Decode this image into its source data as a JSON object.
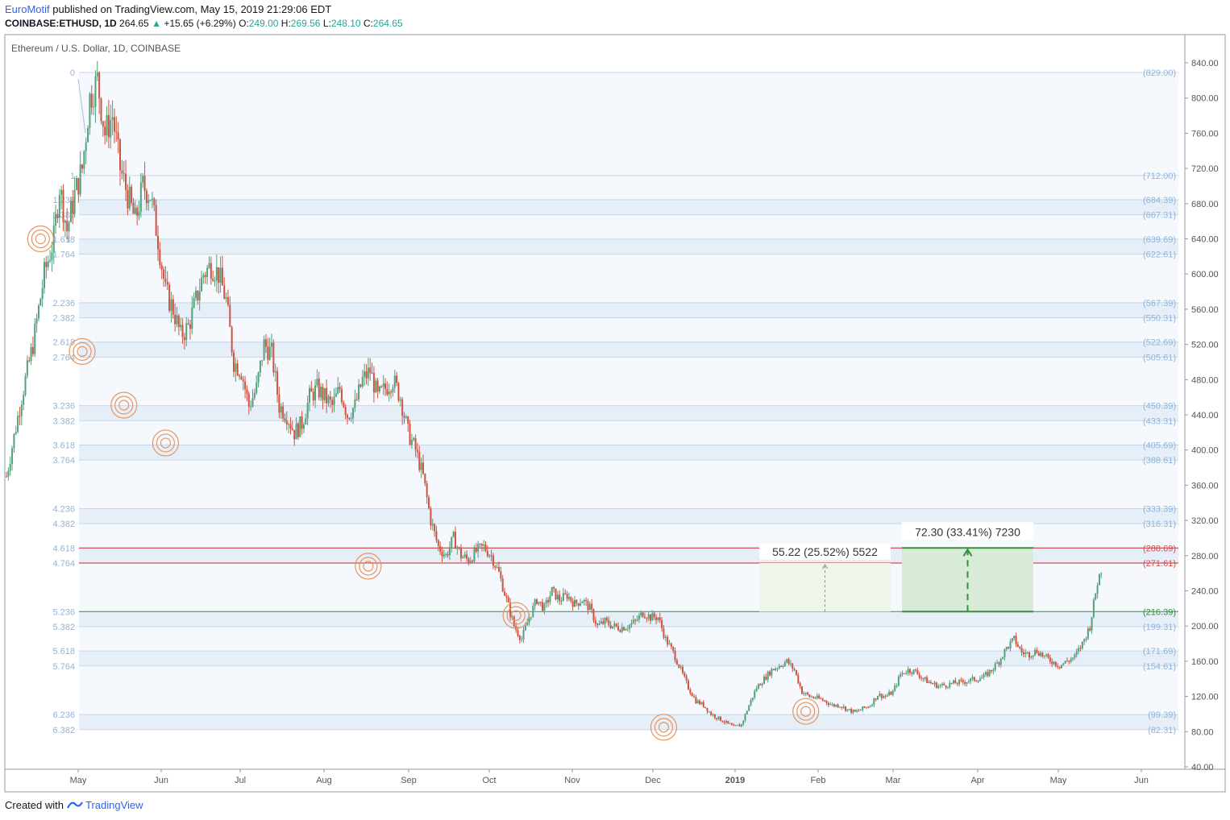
{
  "header": {
    "brand": "EuroMotif",
    "published": "published on TradingView.com, May 15, 2019 21:29:06 EDT",
    "symbol": "COINBASE:ETHUSD, 1D",
    "last": "264.65",
    "change_arrow": "▲",
    "change": "+15.65 (+6.29%)",
    "o_label": "O:",
    "o": "249.00",
    "h_label": "H:",
    "h": "269.56",
    "l_label": "L:",
    "l": "248.10",
    "c_label": "C:",
    "c": "264.65"
  },
  "footer": {
    "created_with": "Created with",
    "brand": "TradingView",
    "logo_icon": "tradingview-logo-icon"
  },
  "colors": {
    "up": "#53a07c",
    "down": "#d0533f",
    "fib_text": "#8fb4d9",
    "fib_band": "#e6eef8",
    "red_line": "#c62828",
    "green_line": "#388e3c",
    "target_circle": "#e8955e"
  },
  "chart_data": {
    "type": "candlestick",
    "title": "Ethereum / U.S. Dollar, 1D, COINBASE",
    "ylim": [
      40,
      850
    ],
    "y_ticks": [
      "840.00",
      "800.00",
      "760.00",
      "720.00",
      "680.00",
      "640.00",
      "600.00",
      "560.00",
      "520.00",
      "480.00",
      "440.00",
      "400.00",
      "360.00",
      "320.00",
      "280.00",
      "240.00",
      "200.00",
      "160.00",
      "120.00",
      "80.00",
      "40.00"
    ],
    "x_ticks": [
      "May",
      "Jun",
      "Jul",
      "Aug",
      "Sep",
      "Oct",
      "Nov",
      "Dec",
      "2019",
      "Feb",
      "Mar",
      "Apr",
      "May",
      "Jun"
    ],
    "fib_levels": [
      {
        "ratio": "0",
        "price": "(829.00)",
        "v": 829
      },
      {
        "ratio": "1",
        "price": "(712.00)",
        "v": 712
      },
      {
        "ratio": "1.236",
        "price": "(684.39)",
        "v": 684.39
      },
      {
        "ratio": "1.382",
        "price": "(667.31)",
        "v": 667.31
      },
      {
        "ratio": "1.618",
        "price": "(639.69)",
        "v": 639.69
      },
      {
        "ratio": "1.764",
        "price": "(622.61)",
        "v": 622.61
      },
      {
        "ratio": "2.236",
        "price": "(567.39)",
        "v": 567.39
      },
      {
        "ratio": "2.382",
        "price": "(550.31)",
        "v": 550.31
      },
      {
        "ratio": "2.618",
        "price": "(522.69)",
        "v": 522.69
      },
      {
        "ratio": "2.764",
        "price": "(505.61)",
        "v": 505.61
      },
      {
        "ratio": "3.236",
        "price": "(450.39)",
        "v": 450.39
      },
      {
        "ratio": "3.382",
        "price": "(433.31)",
        "v": 433.31
      },
      {
        "ratio": "3.618",
        "price": "(405.69)",
        "v": 405.69
      },
      {
        "ratio": "3.764",
        "price": "(388.61)",
        "v": 388.61
      },
      {
        "ratio": "4.236",
        "price": "(333.39)",
        "v": 333.39
      },
      {
        "ratio": "4.382",
        "price": "(316.31)",
        "v": 316.31
      },
      {
        "ratio": "4.618",
        "price": "(288.69)",
        "v": 288.69,
        "color": "red"
      },
      {
        "ratio": "4.764",
        "price": "(271.61)",
        "v": 271.61,
        "color": "red"
      },
      {
        "ratio": "5.236",
        "price": "(216.39)",
        "v": 216.39,
        "color": "green"
      },
      {
        "ratio": "5.382",
        "price": "(199.31)",
        "v": 199.31
      },
      {
        "ratio": "5.618",
        "price": "(171.69)",
        "v": 171.69
      },
      {
        "ratio": "5.764",
        "price": "(154.61)",
        "v": 154.61
      },
      {
        "ratio": "6.236",
        "price": "(99.39)",
        "v": 99.39
      },
      {
        "ratio": "6.382",
        "price": "(82.31)",
        "v": 82.31
      }
    ],
    "measurements": [
      {
        "label": "55.22 (25.52%) 5522",
        "from": 216.39,
        "to": 271.61
      },
      {
        "label": "72.30 (33.41%) 7230",
        "from": 216.39,
        "to": 288.69
      }
    ],
    "target_circle_prices": [
      640,
      512,
      451,
      408,
      268,
      212,
      85,
      103
    ],
    "price_path": [
      [
        0,
        370
      ],
      [
        8,
        460
      ],
      [
        14,
        520
      ],
      [
        20,
        600
      ],
      [
        25,
        640
      ],
      [
        28,
        700
      ],
      [
        32,
        650
      ],
      [
        36,
        690
      ],
      [
        40,
        720
      ],
      [
        44,
        800
      ],
      [
        48,
        820
      ],
      [
        52,
        760
      ],
      [
        56,
        780
      ],
      [
        60,
        720
      ],
      [
        64,
        690
      ],
      [
        68,
        660
      ],
      [
        72,
        700
      ],
      [
        76,
        690
      ],
      [
        80,
        640
      ],
      [
        84,
        580
      ],
      [
        88,
        560
      ],
      [
        92,
        530
      ],
      [
        96,
        540
      ],
      [
        100,
        570
      ],
      [
        104,
        600
      ],
      [
        108,
        610
      ],
      [
        112,
        600
      ],
      [
        116,
        570
      ],
      [
        120,
        500
      ],
      [
        124,
        490
      ],
      [
        128,
        450
      ],
      [
        132,
        470
      ],
      [
        136,
        520
      ],
      [
        140,
        510
      ],
      [
        144,
        450
      ],
      [
        148,
        440
      ],
      [
        152,
        420
      ],
      [
        156,
        430
      ],
      [
        160,
        460
      ],
      [
        164,
        470
      ],
      [
        168,
        460
      ],
      [
        172,
        450
      ],
      [
        176,
        470
      ],
      [
        180,
        440
      ],
      [
        184,
        450
      ],
      [
        188,
        480
      ],
      [
        192,
        490
      ],
      [
        196,
        460
      ],
      [
        200,
        470
      ],
      [
        204,
        480
      ],
      [
        208,
        460
      ],
      [
        212,
        420
      ],
      [
        216,
        400
      ],
      [
        220,
        370
      ],
      [
        224,
        320
      ],
      [
        228,
        290
      ],
      [
        232,
        280
      ],
      [
        236,
        300
      ],
      [
        240,
        280
      ],
      [
        244,
        275
      ],
      [
        248,
        285
      ],
      [
        252,
        290
      ],
      [
        256,
        280
      ],
      [
        260,
        260
      ],
      [
        264,
        230
      ],
      [
        268,
        200
      ],
      [
        272,
        185
      ],
      [
        276,
        210
      ],
      [
        280,
        230
      ],
      [
        284,
        220
      ],
      [
        288,
        240
      ],
      [
        292,
        230
      ],
      [
        296,
        235
      ],
      [
        300,
        225
      ],
      [
        304,
        230
      ],
      [
        308,
        220
      ],
      [
        312,
        200
      ],
      [
        316,
        205
      ],
      [
        320,
        200
      ],
      [
        324,
        198
      ],
      [
        328,
        200
      ],
      [
        332,
        205
      ],
      [
        336,
        215
      ],
      [
        340,
        210
      ],
      [
        344,
        210
      ],
      [
        348,
        185
      ],
      [
        352,
        170
      ],
      [
        356,
        150
      ],
      [
        360,
        130
      ],
      [
        364,
        115
      ],
      [
        368,
        110
      ],
      [
        372,
        100
      ],
      [
        376,
        95
      ],
      [
        380,
        90
      ],
      [
        384,
        85
      ],
      [
        388,
        88
      ],
      [
        392,
        110
      ],
      [
        396,
        130
      ],
      [
        400,
        140
      ],
      [
        404,
        150
      ],
      [
        408,
        155
      ],
      [
        412,
        160
      ],
      [
        416,
        150
      ],
      [
        420,
        125
      ],
      [
        424,
        120
      ],
      [
        428,
        118
      ],
      [
        432,
        115
      ],
      [
        436,
        110
      ],
      [
        440,
        110
      ],
      [
        444,
        105
      ],
      [
        448,
        102
      ],
      [
        452,
        106
      ],
      [
        456,
        110
      ],
      [
        460,
        122
      ],
      [
        464,
        120
      ],
      [
        468,
        125
      ],
      [
        472,
        145
      ],
      [
        476,
        150
      ],
      [
        480,
        148
      ],
      [
        484,
        140
      ],
      [
        488,
        135
      ],
      [
        492,
        132
      ],
      [
        496,
        133
      ],
      [
        500,
        135
      ],
      [
        504,
        136
      ],
      [
        508,
        138
      ],
      [
        512,
        140
      ],
      [
        516,
        142
      ],
      [
        520,
        150
      ],
      [
        524,
        160
      ],
      [
        528,
        175
      ],
      [
        532,
        185
      ],
      [
        536,
        170
      ],
      [
        540,
        168
      ],
      [
        544,
        172
      ],
      [
        548,
        165
      ],
      [
        552,
        160
      ],
      [
        556,
        155
      ],
      [
        560,
        160
      ],
      [
        564,
        165
      ],
      [
        568,
        180
      ],
      [
        572,
        200
      ],
      [
        576,
        250
      ],
      [
        578,
        265
      ]
    ]
  }
}
